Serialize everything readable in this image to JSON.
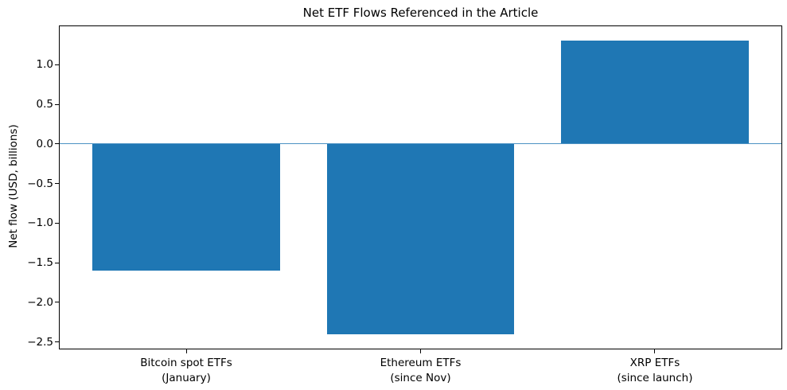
{
  "chart_data": {
    "type": "bar",
    "title": "Net ETF Flows Referenced in the Article",
    "xlabel": "",
    "ylabel": "Net flow (USD, billions)",
    "categories": [
      "Bitcoin spot ETFs\n(January)",
      "Ethereum ETFs\n(since Nov)",
      "XRP ETFs\n(since launch)"
    ],
    "values": [
      -1.6,
      -2.4,
      1.3
    ],
    "yticks": [
      1.0,
      0.5,
      0.0,
      -0.5,
      -1.0,
      -1.5,
      -2.0,
      -2.5
    ],
    "ylim": [
      -2.585,
      1.485
    ],
    "xlim": [
      -0.54,
      2.54
    ],
    "bar_width_units": 0.8,
    "bar_color": "#1f77b4",
    "zero_line_color": "#4c92c3",
    "axis_color": "#000000",
    "background_color": "#ffffff",
    "grid": false,
    "legend_position": "none"
  }
}
